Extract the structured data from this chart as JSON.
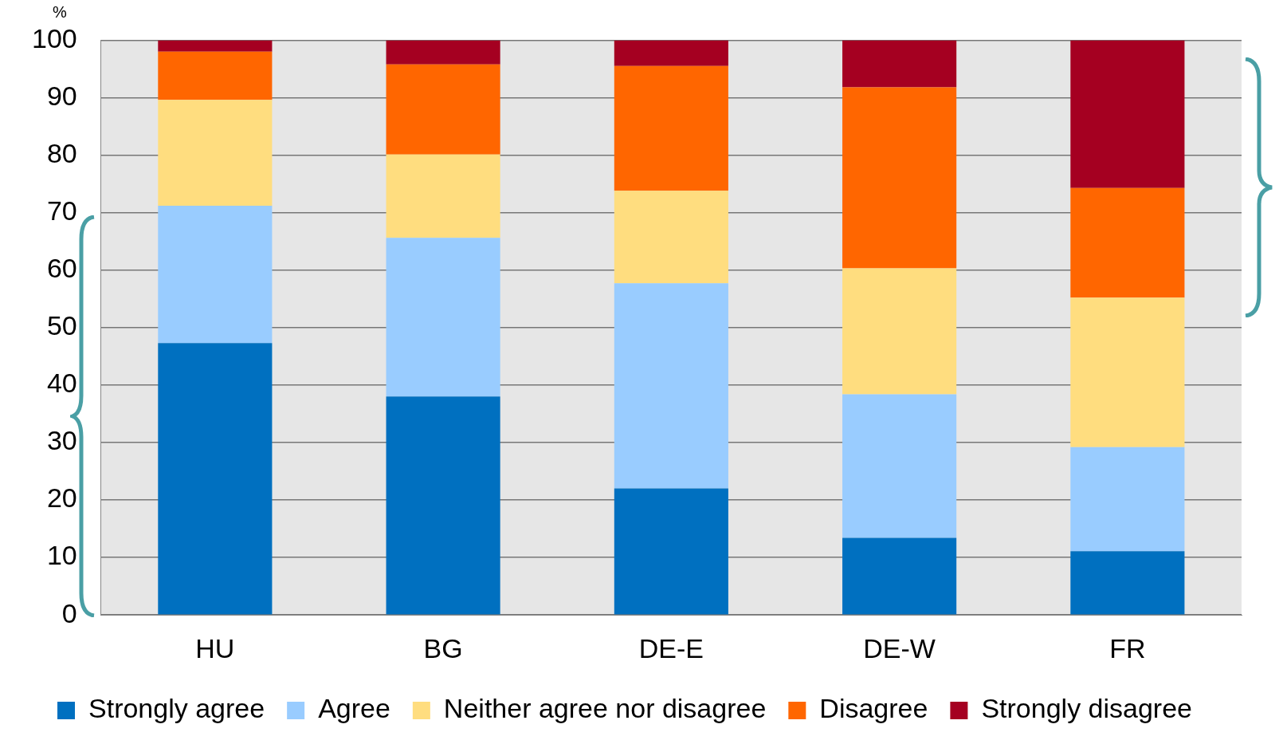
{
  "chart_data": {
    "type": "bar",
    "stacked": true,
    "ylabel": "%",
    "categories": [
      "HU",
      "BG",
      "DE-E",
      "DE-W",
      "FR"
    ],
    "series": [
      {
        "name": "Strongly agree",
        "color": "#0070c0",
        "values": [
          47.3,
          38.0,
          22.0,
          13.4,
          11.1
        ]
      },
      {
        "name": "Agree",
        "color": "#99ccff",
        "values": [
          23.9,
          27.6,
          35.7,
          25.0,
          18.1
        ]
      },
      {
        "name": "Neither agree nor disagree",
        "color": "#ffdd7f",
        "values": [
          18.4,
          14.5,
          16.1,
          21.9,
          26.0
        ]
      },
      {
        "name": "Disagree",
        "color": "#ff6600",
        "values": [
          8.4,
          15.7,
          21.7,
          31.5,
          19.1
        ]
      },
      {
        "name": "Strongly disagree",
        "color": "#a50021",
        "values": [
          2.0,
          4.2,
          4.5,
          8.2,
          25.7
        ]
      }
    ],
    "ylim": [
      0,
      100
    ],
    "yticks": [
      0,
      10,
      20,
      30,
      40,
      50,
      60,
      70,
      80,
      90,
      100
    ],
    "grid": "y",
    "legend": "bottom"
  }
}
